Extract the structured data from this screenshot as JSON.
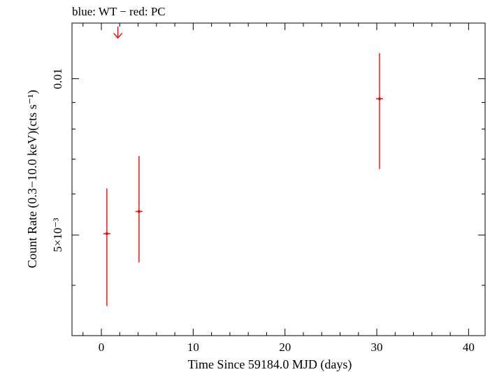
{
  "chart_data": {
    "type": "scatter",
    "title": "blue: WT − red: PC",
    "xlabel": "Time Since 59184.0 MJD (days)",
    "ylabel": "Count Rate (0.3−10.0 keV)(cts s⁻¹)",
    "xlim": [
      -3.2,
      41.8
    ],
    "ylim": [
      0.0032,
      0.0128
    ],
    "y_scale": "log",
    "x_ticks": [
      {
        "value": 0,
        "label": "0"
      },
      {
        "value": 10,
        "label": "10"
      },
      {
        "value": 20,
        "label": "20"
      },
      {
        "value": 30,
        "label": "30"
      },
      {
        "value": 40,
        "label": "40"
      }
    ],
    "y_ticks": [
      {
        "value": 0.01,
        "label": "0.01"
      },
      {
        "value": 0.005,
        "label": "5×10⁻³"
      }
    ],
    "y_minor_ticks": [
      0.004,
      0.006,
      0.007,
      0.008,
      0.009
    ],
    "grid": false,
    "series": [
      {
        "color": "#ff0000",
        "points": [
          {
            "x": 0.6,
            "y": 0.00503,
            "yerr_low": 0.00365,
            "yerr_high": 0.00615
          },
          {
            "x": 4.1,
            "y": 0.00555,
            "yerr_low": 0.00443,
            "yerr_high": 0.0071
          },
          {
            "x": 30.3,
            "y": 0.00915,
            "yerr_low": 0.0067,
            "yerr_high": 0.0112
          }
        ]
      }
    ],
    "upper_limits": [
      {
        "x": 1.8,
        "y": 0.0122,
        "color": "#ff0000"
      }
    ]
  }
}
